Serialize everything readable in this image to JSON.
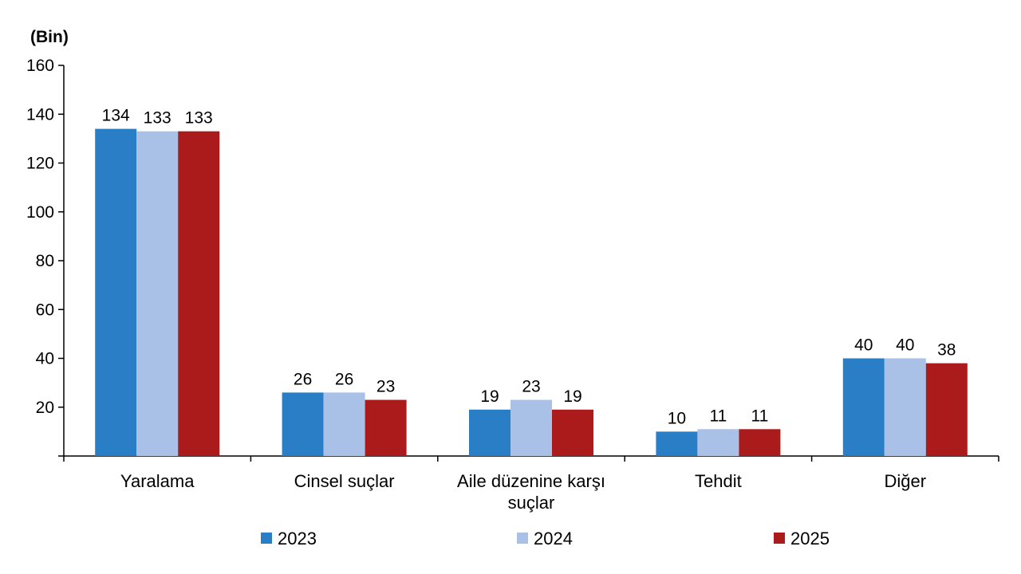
{
  "chart_data": {
    "type": "bar",
    "unit_label": "(Bin)",
    "categories": [
      [
        "Yaralama"
      ],
      [
        "Cinsel suçlar"
      ],
      [
        "Aile düzenine karşı",
        "suçlar"
      ],
      [
        "Tehdit"
      ],
      [
        "Diğer"
      ]
    ],
    "series": [
      {
        "name": "2023",
        "color": "#2a7ec5",
        "values": [
          134,
          26,
          19,
          10,
          40
        ]
      },
      {
        "name": "2024",
        "color": "#a9c1e6",
        "values": [
          133,
          26,
          23,
          11,
          40
        ]
      },
      {
        "name": "2025",
        "color": "#ab1b1b",
        "values": [
          133,
          23,
          19,
          11,
          38
        ]
      }
    ],
    "ylim": [
      0,
      160
    ],
    "yticks": [
      "20",
      "40",
      "60",
      "80",
      "100",
      "120",
      "140",
      "160"
    ],
    "ytick_values": [
      20,
      40,
      60,
      80,
      100,
      120,
      140,
      160
    ],
    "grid": false,
    "legend_position": "bottom"
  }
}
